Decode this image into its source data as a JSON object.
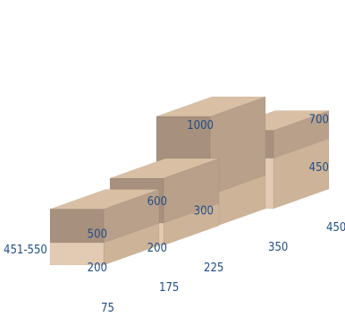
{
  "chart_data": {
    "type": "bar",
    "subtype": "3d-stacked",
    "category_label": "451-550",
    "stacks": [
      {
        "x": "75",
        "lower": 200,
        "total": 500
      },
      {
        "x": "175",
        "lower": 200,
        "total": 600
      },
      {
        "x": "225",
        "lower": 300,
        "total": 1000
      },
      {
        "x": "350",
        "lower": 450,
        "total": 700
      },
      {
        "x": "450"
      }
    ],
    "colors": {
      "lower_front": "#e2cbb2",
      "lower_side": "#cdb397",
      "upper_front": "#a7907d",
      "upper_side": "#b9a08a",
      "top": "#d9c0a5",
      "text": "#1f4e86"
    }
  }
}
